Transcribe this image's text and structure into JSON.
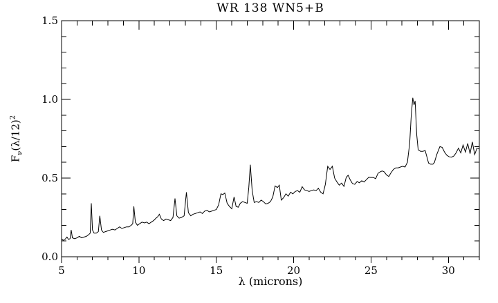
{
  "chart_data": {
    "type": "line",
    "title": "WR 138 WN5+B",
    "xlabel": "λ (microns)",
    "ylabel": "Fν(λ/12)²",
    "ylabel_parts": {
      "base": "F",
      "subscript": "ν",
      "middle": "(λ/12)",
      "superscript": "2"
    },
    "xlim": [
      5,
      32
    ],
    "ylim": [
      0,
      1.5
    ],
    "x_major_ticks": [
      5,
      10,
      15,
      20,
      25,
      30
    ],
    "x_tick_labels": [
      "5",
      "10",
      "15",
      "20",
      "25",
      "30"
    ],
    "x_minor_step": 1,
    "y_major_ticks": [
      0,
      0.5,
      1,
      1.5
    ],
    "y_tick_labels": [
      "0.0",
      "0.5",
      "1.0",
      "1.5"
    ],
    "y_minor_step": 0.1,
    "grid": false,
    "legend": "none",
    "background_color": "#ffffff",
    "line_color": "#000000",
    "axis_color": "#000000",
    "series": [
      {
        "name": "WR 138 WN5+B spectrum",
        "points": [
          [
            5.0,
            0.115
          ],
          [
            5.1,
            0.105
          ],
          [
            5.22,
            0.11
          ],
          [
            5.35,
            0.125
          ],
          [
            5.45,
            0.11
          ],
          [
            5.55,
            0.115
          ],
          [
            5.62,
            0.17
          ],
          [
            5.7,
            0.12
          ],
          [
            5.85,
            0.115
          ],
          [
            6.0,
            0.12
          ],
          [
            6.15,
            0.13
          ],
          [
            6.3,
            0.12
          ],
          [
            6.45,
            0.125
          ],
          [
            6.6,
            0.13
          ],
          [
            6.75,
            0.14
          ],
          [
            6.85,
            0.15
          ],
          [
            6.92,
            0.34
          ],
          [
            7.0,
            0.17
          ],
          [
            7.1,
            0.15
          ],
          [
            7.25,
            0.15
          ],
          [
            7.38,
            0.16
          ],
          [
            7.47,
            0.26
          ],
          [
            7.58,
            0.17
          ],
          [
            7.7,
            0.155
          ],
          [
            7.85,
            0.16
          ],
          [
            8.0,
            0.165
          ],
          [
            8.15,
            0.17
          ],
          [
            8.3,
            0.175
          ],
          [
            8.45,
            0.17
          ],
          [
            8.6,
            0.18
          ],
          [
            8.75,
            0.19
          ],
          [
            8.9,
            0.18
          ],
          [
            9.05,
            0.185
          ],
          [
            9.2,
            0.19
          ],
          [
            9.35,
            0.19
          ],
          [
            9.5,
            0.2
          ],
          [
            9.6,
            0.21
          ],
          [
            9.67,
            0.32
          ],
          [
            9.77,
            0.22
          ],
          [
            9.9,
            0.2
          ],
          [
            10.05,
            0.21
          ],
          [
            10.2,
            0.22
          ],
          [
            10.35,
            0.215
          ],
          [
            10.5,
            0.22
          ],
          [
            10.65,
            0.21
          ],
          [
            10.8,
            0.22
          ],
          [
            10.95,
            0.23
          ],
          [
            11.1,
            0.245
          ],
          [
            11.22,
            0.255
          ],
          [
            11.32,
            0.27
          ],
          [
            11.45,
            0.24
          ],
          [
            11.6,
            0.23
          ],
          [
            11.75,
            0.24
          ],
          [
            11.9,
            0.235
          ],
          [
            12.05,
            0.23
          ],
          [
            12.2,
            0.25
          ],
          [
            12.33,
            0.37
          ],
          [
            12.45,
            0.26
          ],
          [
            12.6,
            0.245
          ],
          [
            12.75,
            0.25
          ],
          [
            12.92,
            0.26
          ],
          [
            13.07,
            0.41
          ],
          [
            13.2,
            0.28
          ],
          [
            13.35,
            0.26
          ],
          [
            13.5,
            0.27
          ],
          [
            13.65,
            0.275
          ],
          [
            13.8,
            0.28
          ],
          [
            13.95,
            0.285
          ],
          [
            14.1,
            0.275
          ],
          [
            14.25,
            0.29
          ],
          [
            14.4,
            0.295
          ],
          [
            14.55,
            0.285
          ],
          [
            14.7,
            0.29
          ],
          [
            14.85,
            0.295
          ],
          [
            15.0,
            0.3
          ],
          [
            15.15,
            0.33
          ],
          [
            15.3,
            0.4
          ],
          [
            15.42,
            0.395
          ],
          [
            15.55,
            0.405
          ],
          [
            15.7,
            0.34
          ],
          [
            15.85,
            0.32
          ],
          [
            16.0,
            0.305
          ],
          [
            16.15,
            0.38
          ],
          [
            16.28,
            0.32
          ],
          [
            16.42,
            0.315
          ],
          [
            16.55,
            0.34
          ],
          [
            16.7,
            0.35
          ],
          [
            16.85,
            0.345
          ],
          [
            17.0,
            0.34
          ],
          [
            17.1,
            0.44
          ],
          [
            17.2,
            0.585
          ],
          [
            17.32,
            0.42
          ],
          [
            17.45,
            0.345
          ],
          [
            17.6,
            0.35
          ],
          [
            17.75,
            0.345
          ],
          [
            17.9,
            0.36
          ],
          [
            18.05,
            0.35
          ],
          [
            18.2,
            0.335
          ],
          [
            18.35,
            0.34
          ],
          [
            18.5,
            0.35
          ],
          [
            18.65,
            0.38
          ],
          [
            18.8,
            0.45
          ],
          [
            18.95,
            0.44
          ],
          [
            19.07,
            0.455
          ],
          [
            19.2,
            0.36
          ],
          [
            19.35,
            0.375
          ],
          [
            19.5,
            0.4
          ],
          [
            19.65,
            0.385
          ],
          [
            19.8,
            0.41
          ],
          [
            19.95,
            0.4
          ],
          [
            20.1,
            0.415
          ],
          [
            20.25,
            0.42
          ],
          [
            20.4,
            0.41
          ],
          [
            20.55,
            0.445
          ],
          [
            20.7,
            0.425
          ],
          [
            20.85,
            0.42
          ],
          [
            21.0,
            0.415
          ],
          [
            21.15,
            0.42
          ],
          [
            21.3,
            0.425
          ],
          [
            21.45,
            0.42
          ],
          [
            21.6,
            0.435
          ],
          [
            21.75,
            0.41
          ],
          [
            21.9,
            0.4
          ],
          [
            22.05,
            0.46
          ],
          [
            22.2,
            0.575
          ],
          [
            22.35,
            0.555
          ],
          [
            22.5,
            0.575
          ],
          [
            22.65,
            0.5
          ],
          [
            22.8,
            0.475
          ],
          [
            22.95,
            0.455
          ],
          [
            23.1,
            0.468
          ],
          [
            23.25,
            0.447
          ],
          [
            23.4,
            0.505
          ],
          [
            23.52,
            0.518
          ],
          [
            23.65,
            0.49
          ],
          [
            23.8,
            0.465
          ],
          [
            23.95,
            0.46
          ],
          [
            24.1,
            0.478
          ],
          [
            24.25,
            0.47
          ],
          [
            24.4,
            0.483
          ],
          [
            24.55,
            0.475
          ],
          [
            24.7,
            0.49
          ],
          [
            24.85,
            0.505
          ],
          [
            25.0,
            0.504
          ],
          [
            25.15,
            0.504
          ],
          [
            25.3,
            0.496
          ],
          [
            25.45,
            0.53
          ],
          [
            25.6,
            0.54
          ],
          [
            25.72,
            0.545
          ],
          [
            25.85,
            0.54
          ],
          [
            26.0,
            0.52
          ],
          [
            26.15,
            0.51
          ],
          [
            26.3,
            0.535
          ],
          [
            26.45,
            0.555
          ],
          [
            26.6,
            0.565
          ],
          [
            26.75,
            0.565
          ],
          [
            26.9,
            0.57
          ],
          [
            27.05,
            0.575
          ],
          [
            27.2,
            0.57
          ],
          [
            27.35,
            0.6
          ],
          [
            27.5,
            0.72
          ],
          [
            27.6,
            0.9
          ],
          [
            27.7,
            1.01
          ],
          [
            27.78,
            0.965
          ],
          [
            27.85,
            0.99
          ],
          [
            27.95,
            0.78
          ],
          [
            28.05,
            0.68
          ],
          [
            28.2,
            0.67
          ],
          [
            28.35,
            0.67
          ],
          [
            28.5,
            0.675
          ],
          [
            28.6,
            0.64
          ],
          [
            28.72,
            0.595
          ],
          [
            28.85,
            0.588
          ],
          [
            29.0,
            0.588
          ],
          [
            29.1,
            0.6
          ],
          [
            29.25,
            0.65
          ],
          [
            29.45,
            0.7
          ],
          [
            29.6,
            0.695
          ],
          [
            29.75,
            0.665
          ],
          [
            29.9,
            0.645
          ],
          [
            30.05,
            0.635
          ],
          [
            30.2,
            0.633
          ],
          [
            30.35,
            0.64
          ],
          [
            30.5,
            0.66
          ],
          [
            30.65,
            0.69
          ],
          [
            30.8,
            0.66
          ],
          [
            30.95,
            0.71
          ],
          [
            31.1,
            0.665
          ],
          [
            31.25,
            0.72
          ],
          [
            31.4,
            0.655
          ],
          [
            31.55,
            0.73
          ],
          [
            31.7,
            0.65
          ],
          [
            31.85,
            0.69
          ],
          [
            32.0,
            0.685
          ]
        ]
      }
    ]
  }
}
